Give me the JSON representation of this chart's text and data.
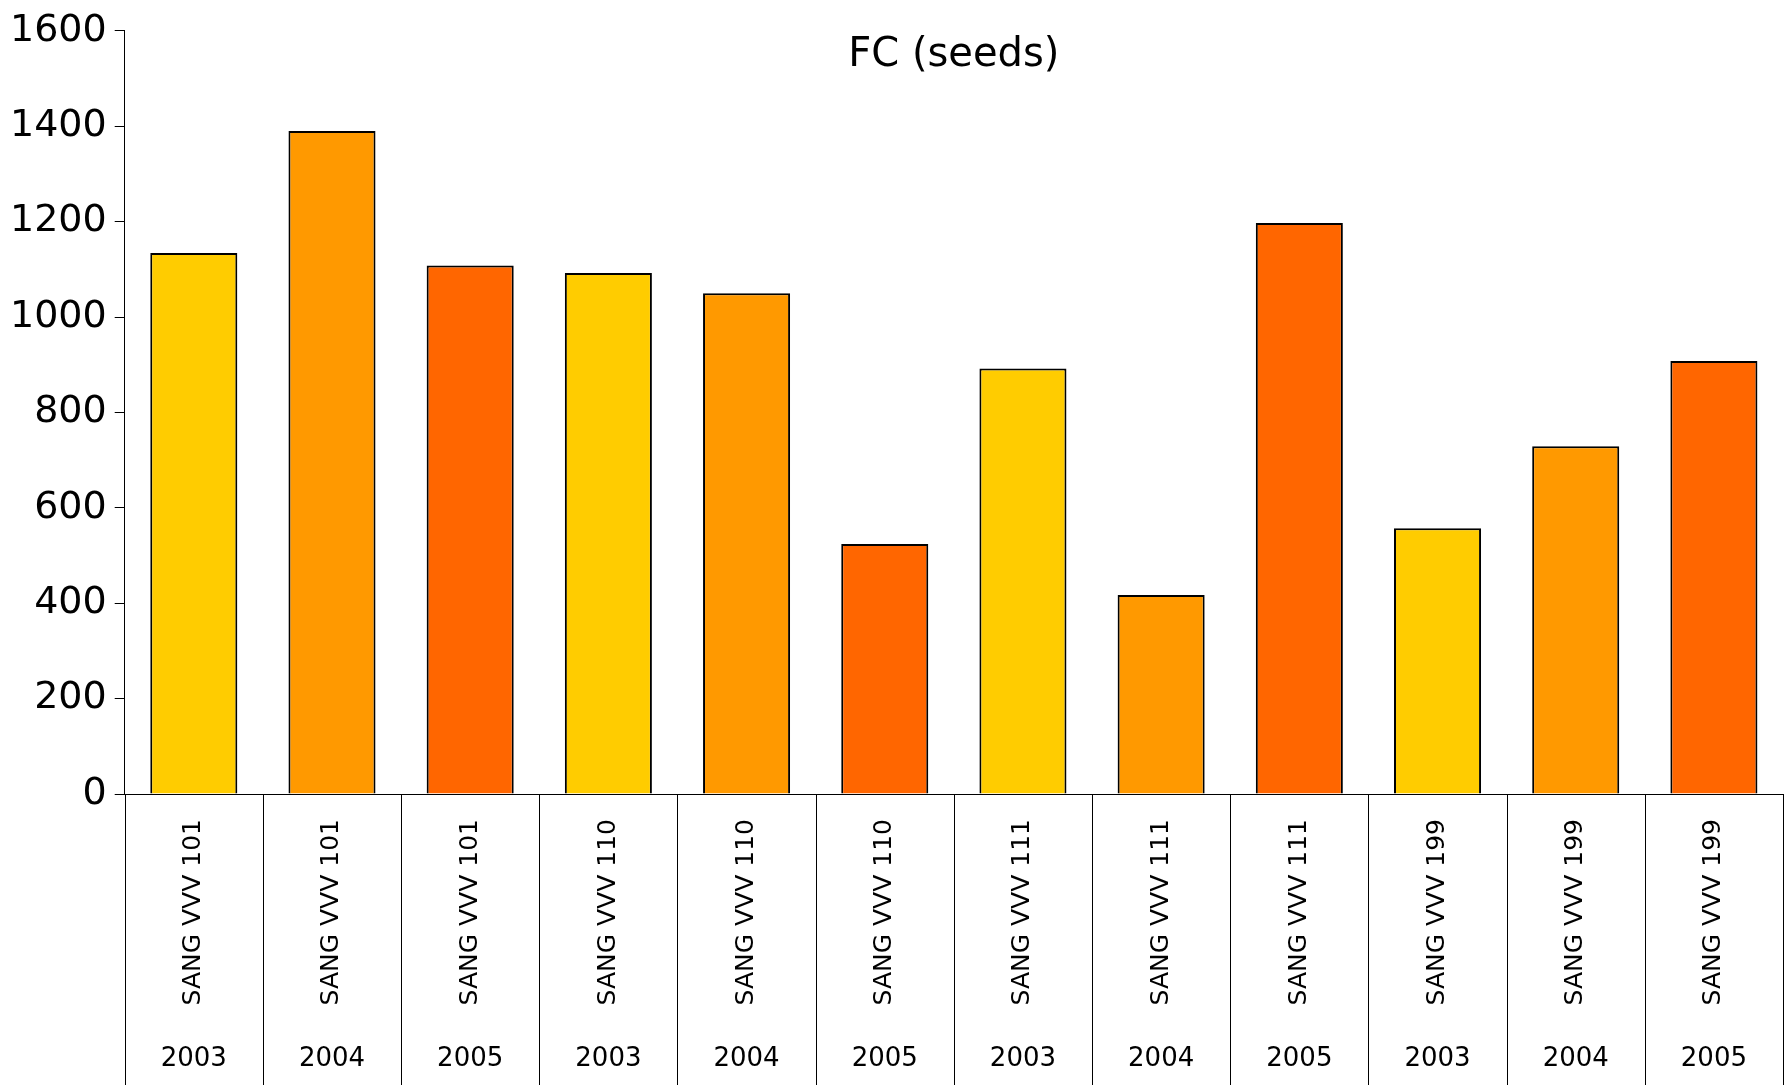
{
  "chart_data": {
    "type": "bar",
    "title": "FC (seeds)",
    "categories": [
      "SANG VVV 101\n2003",
      "SANG VVV 101\n2004",
      "SANG VVV 101\n2005",
      "SANG VVV 110\n2003",
      "SANG VVV 110\n2004",
      "SANG VVV 110\n2005",
      "SANG VVV 111\n2003",
      "SANG VVV 111\n2004",
      "SANG VVV 111\n2005",
      "SANG VVV 199\n2003",
      "SANG VVV 199\n2004",
      "SANG VVV 199\n2005"
    ],
    "values": [
      1134,
      1390,
      1108,
      1092,
      1050,
      524,
      892,
      417,
      1197,
      557,
      729,
      908
    ],
    "colors": [
      "#ffcc00",
      "#ff9900",
      "#ff6600",
      "#ffcc00",
      "#ff9900",
      "#ff6600",
      "#ffcc00",
      "#ff9900",
      "#ff6600",
      "#ffcc00",
      "#ff9900",
      "#ff6600"
    ],
    "ylim": [
      0,
      1600
    ],
    "yticks": [
      0,
      200,
      400,
      600,
      800,
      1000,
      1200,
      1400,
      1600
    ],
    "grid": false,
    "legend": false
  }
}
